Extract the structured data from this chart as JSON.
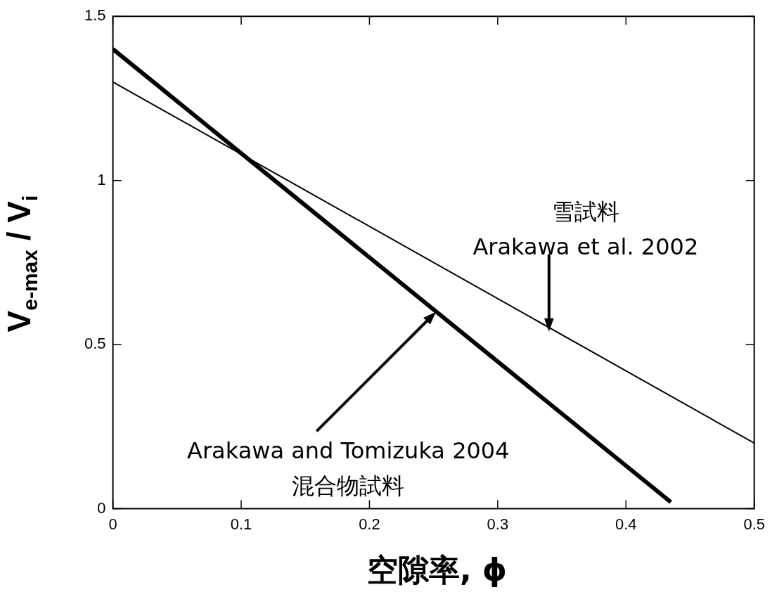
{
  "chart_data": {
    "type": "line",
    "xlabel": "空隙率, ϕ",
    "ylabel": "V$_{e-max}$ / V$_{i}$",
    "xlim": [
      0,
      0.5
    ],
    "xticks": [
      0,
      0.1,
      0.2,
      0.3,
      0.4,
      0.5
    ],
    "ylim": [
      0,
      1.5
    ],
    "yticks": [
      0,
      0.5,
      1,
      1.5
    ],
    "grid": false,
    "legend": false,
    "marker": "none",
    "line_style": "solid",
    "series": [
      {
        "color": "#000000",
        "x": [
          0,
          0.435
        ],
        "values": [
          1.4,
          0.02
        ]
      },
      {
        "color": "#000000",
        "x": [
          0,
          0.5
        ],
        "values": [
          1.3,
          0.2
        ]
      }
    ],
    "annotations": [
      "雪試料",
      "Arakawa et al. 2002",
      "Arakawa and Tomizuka 2004",
      "混合物試料"
    ]
  }
}
